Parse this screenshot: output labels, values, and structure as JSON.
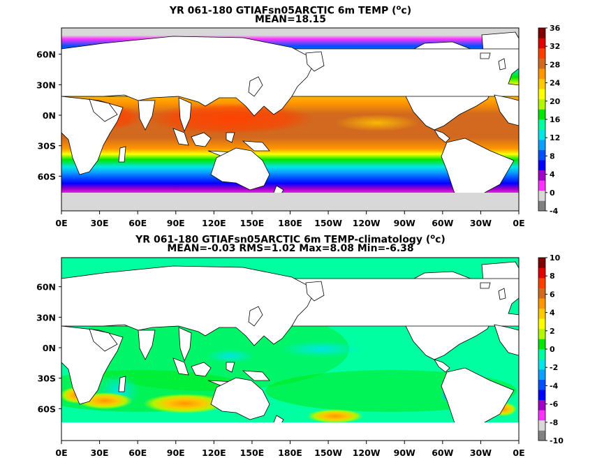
{
  "panels": [
    {
      "title_prefix": "YR 061-180 GTIAFsn05ARCTIC 6m TEMP (",
      "title_sup": "o",
      "title_suffix": "c)",
      "subtitle": "MEAN=18.15",
      "xticks": [
        "0E",
        "30E",
        "60E",
        "90E",
        "120E",
        "150E",
        "180E",
        "150W",
        "120W",
        "90W",
        "60W",
        "30W",
        "0E"
      ],
      "yticks": [
        "60N",
        "30N",
        "0N",
        "30S",
        "60S"
      ],
      "colorbar": {
        "labels": [
          "36",
          "32",
          "28",
          "24",
          "20",
          "16",
          "12",
          "8",
          "4",
          "0",
          "-4"
        ],
        "colors": [
          "#808080",
          "#d8d8d8",
          "#ff33ff",
          "#a000c8",
          "#0000ff",
          "#0050ff",
          "#0aa0ff",
          "#00e6e6",
          "#00ffa0",
          "#00e600",
          "#b4f500",
          "#ffff00",
          "#ffc800",
          "#ff9600",
          "#d2691e",
          "#ff4000",
          "#e00000",
          "#800000"
        ]
      }
    },
    {
      "title_prefix": "YR 061-180 GTIAFsn05ARCTIC 6m TEMP-climatology (",
      "title_sup": "o",
      "title_suffix": "c)",
      "subtitle": "MEAN=-0.03   RMS=1.02   Max=8.08   Min=-6.38",
      "xticks": [
        "0E",
        "30E",
        "60E",
        "90E",
        "120E",
        "150E",
        "180E",
        "150W",
        "120W",
        "90W",
        "60W",
        "30W",
        "0E"
      ],
      "yticks": [
        "60N",
        "30N",
        "0N",
        "30S",
        "60S"
      ],
      "colorbar": {
        "labels": [
          "10",
          "8",
          "6",
          "4",
          "2",
          "0",
          "-2",
          "-4",
          "-6",
          "-8",
          "-10"
        ],
        "colors": [
          "#808080",
          "#d8d8d8",
          "#ff33ff",
          "#a000c8",
          "#0000ff",
          "#0050ff",
          "#0aa0ff",
          "#00e6e6",
          "#00ffa0",
          "#00e600",
          "#b4f500",
          "#ffff00",
          "#ffc800",
          "#ff9600",
          "#d2691e",
          "#ff4000",
          "#e00000",
          "#800000"
        ]
      }
    }
  ]
}
